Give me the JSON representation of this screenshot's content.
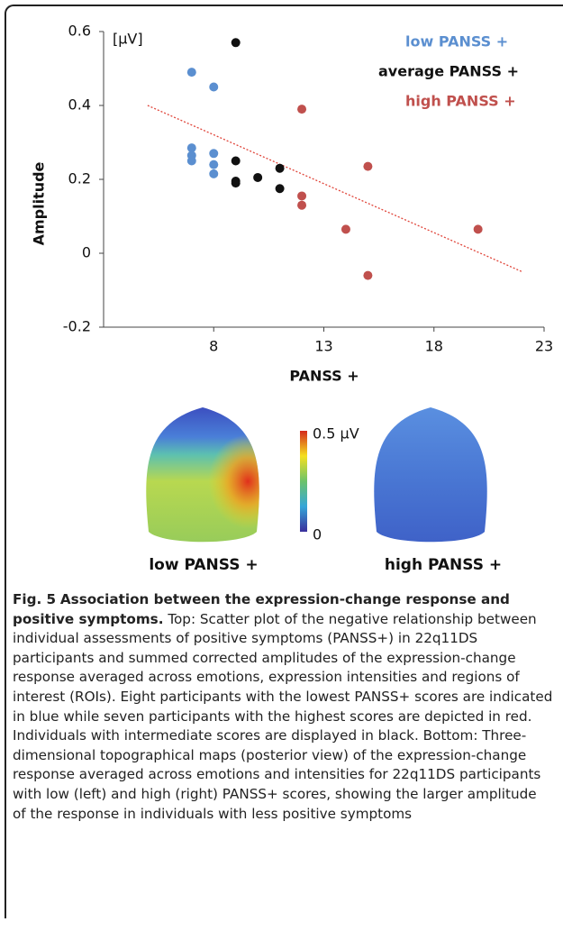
{
  "chart_data": {
    "type": "scatter",
    "y_unit": "[µV]",
    "x_label": "PANSS +",
    "y_label": "Amplitude",
    "xlim": [
      3,
      23
    ],
    "ylim": [
      -0.2,
      0.6
    ],
    "xticks": [
      8,
      13,
      18,
      23
    ],
    "yticks": [
      -0.2,
      0,
      0.2,
      0.4,
      0.6
    ],
    "series": [
      {
        "name": "low PANSS +",
        "color": "#5b8fd0",
        "x": [
          7,
          8,
          7,
          7,
          7,
          8,
          8,
          8
        ],
        "values": [
          0.49,
          0.45,
          0.285,
          0.265,
          0.25,
          0.27,
          0.24,
          0.215
        ]
      },
      {
        "name": "average PANSS +",
        "color": "#111111",
        "x": [
          9,
          9,
          9,
          9,
          10,
          11,
          11
        ],
        "values": [
          0.57,
          0.25,
          0.195,
          0.19,
          0.205,
          0.23,
          0.175
        ]
      },
      {
        "name": "high PANSS +",
        "color": "#c0504d",
        "x": [
          12,
          15,
          12,
          12,
          14,
          20,
          15
        ],
        "values": [
          0.39,
          0.235,
          0.155,
          0.13,
          0.065,
          0.065,
          -0.06
        ]
      }
    ],
    "trendline": {
      "color": "#e0453a",
      "x": [
        5,
        22
      ],
      "values": [
        0.4,
        -0.05
      ]
    }
  },
  "head_maps": {
    "colorbar_max": "0.5 µV",
    "colorbar_min": "0",
    "labels": [
      "low PANSS +",
      "high PANSS +"
    ]
  },
  "caption": {
    "label": "Fig. 5",
    "title": "Association between the expression-change response and positive symptoms.",
    "text": "Top: Scatter plot of the negative relationship between individual assessments of positive symptoms (PANSS+) in 22q11DS participants and summed corrected amplitudes of the expression-change response averaged across emotions, expression intensities and regions of interest (ROIs). Eight participants with the lowest PANSS+ scores are indicated in blue while seven participants with the highest scores are depicted in red. Individuals with intermediate scores are displayed in black. Bottom: Three-dimensional topographical maps (posterior view) of the expression-change response averaged across emotions and intensities for 22q11DS participants with low (left) and high (right) PANSS+ scores, showing the larger amplitude of the response in individuals with less positive symptoms"
  }
}
